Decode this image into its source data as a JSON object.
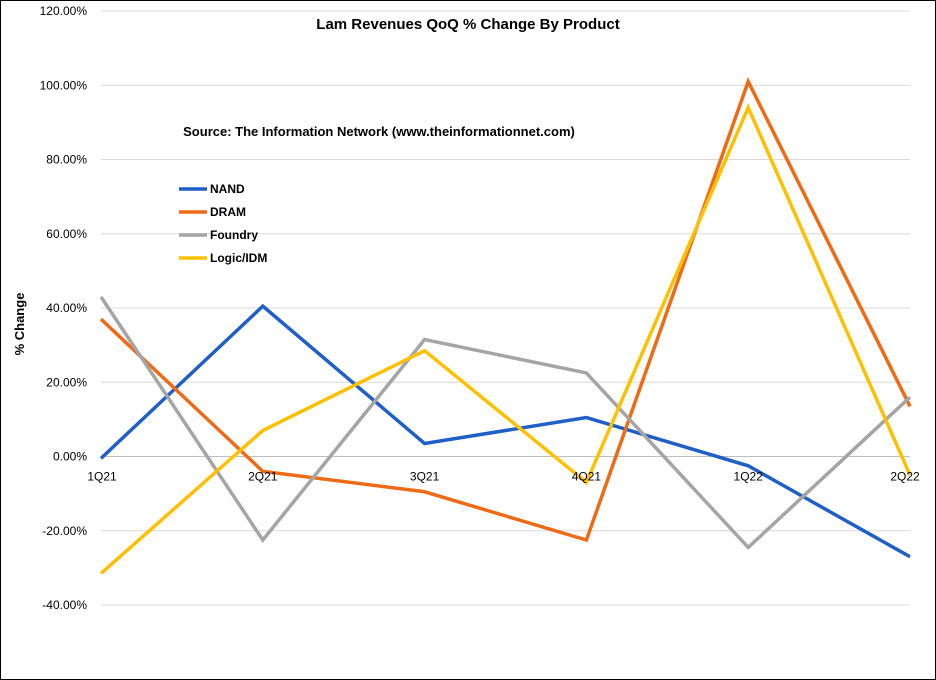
{
  "chart_data": {
    "type": "line",
    "title": "Lam Revenues QoQ % Change By Product",
    "annotation": "Source: The Information Network (www.theinformationnet.com)",
    "ylabel": "% Change",
    "xlabel": "",
    "categories": [
      "1Q21",
      "2Q21",
      "3Q21",
      "4Q21",
      "1Q22",
      "2Q22"
    ],
    "ylim": [
      -40,
      120
    ],
    "yticks": [
      -40,
      -20,
      0,
      20,
      40,
      60,
      80,
      100,
      120
    ],
    "ytick_labels": [
      "-40.00%",
      "-20.00%",
      "0.00%",
      "20.00%",
      "40.00%",
      "60.00%",
      "80.00%",
      "100.00%",
      "120.00%"
    ],
    "grid": true,
    "legend_position": "top-left",
    "series": [
      {
        "name": "NAND",
        "color": "#1f5fc6",
        "values": [
          -0.5,
          40.5,
          3.5,
          10.5,
          -2.5,
          -27
        ]
      },
      {
        "name": "DRAM",
        "color": "#ed6b16",
        "values": [
          37,
          -4,
          -9.5,
          -22.5,
          101,
          13.5
        ]
      },
      {
        "name": "Foundry",
        "color": "#a5a5a5",
        "values": [
          43,
          -22.5,
          31.5,
          22.5,
          -24.5,
          16
        ]
      },
      {
        "name": "Logic/IDM",
        "color": "#ffc000",
        "values": [
          -31.5,
          7,
          28.5,
          -7,
          94,
          -5
        ]
      }
    ]
  }
}
